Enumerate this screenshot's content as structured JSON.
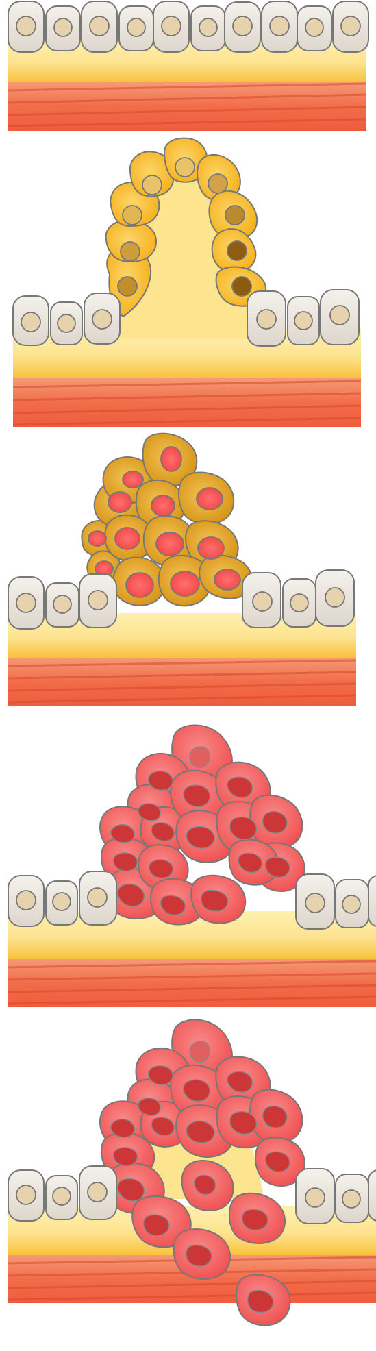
{
  "figure": {
    "stages": [
      {
        "id": "normal-epithelium"
      },
      {
        "id": "hyperplasia-dysplasia"
      },
      {
        "id": "carcinoma-in-situ"
      },
      {
        "id": "early-invasive-carcinoma"
      },
      {
        "id": "invasive-metastatic-carcinoma"
      }
    ]
  },
  "palette": {
    "normal_cell": "#efeae3",
    "normal_nucleus": "#e6d2ac",
    "stroma": "#fdd97a",
    "muscle": "#f2794f",
    "dysplastic_cell": "#f9b829",
    "carcinoma_cell": "#d9991b",
    "tumor_cell": "#f46262",
    "tumor_nucleus": "#cd3636",
    "outline": "#666666"
  }
}
